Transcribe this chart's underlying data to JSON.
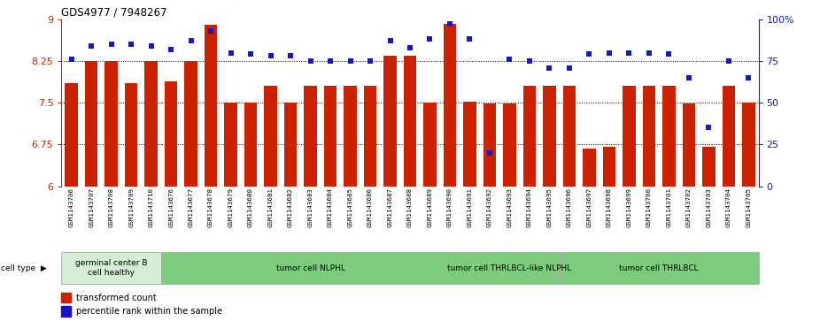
{
  "title": "GDS4977 / 7948267",
  "samples": [
    "GSM1143706",
    "GSM1143707",
    "GSM1143708",
    "GSM1143709",
    "GSM1143710",
    "GSM1143676",
    "GSM1143677",
    "GSM1143678",
    "GSM1143679",
    "GSM1143680",
    "GSM1143681",
    "GSM1143682",
    "GSM1143683",
    "GSM1143684",
    "GSM1143685",
    "GSM1143686",
    "GSM1143687",
    "GSM1143688",
    "GSM1143689",
    "GSM1143690",
    "GSM1143691",
    "GSM1143692",
    "GSM1143693",
    "GSM1143694",
    "GSM1143695",
    "GSM1143696",
    "GSM1143697",
    "GSM1143698",
    "GSM1143699",
    "GSM1143700",
    "GSM1143701",
    "GSM1143702",
    "GSM1143703",
    "GSM1143704",
    "GSM1143705"
  ],
  "bar_values": [
    7.85,
    8.25,
    8.25,
    7.85,
    8.25,
    7.88,
    8.25,
    8.9,
    7.5,
    7.5,
    7.8,
    7.5,
    7.8,
    7.8,
    7.8,
    7.8,
    8.35,
    8.35,
    7.5,
    8.92,
    7.52,
    7.48,
    7.48,
    7.8,
    7.8,
    7.8,
    6.68,
    6.7,
    7.8,
    7.8,
    7.8,
    7.48,
    6.7,
    7.8,
    7.5
  ],
  "percentile_values": [
    76,
    84,
    85,
    85,
    84,
    82,
    87,
    93,
    80,
    79,
    78,
    78,
    75,
    75,
    75,
    75,
    87,
    83,
    88,
    97,
    88,
    20,
    76,
    75,
    71,
    71,
    79,
    80,
    80,
    80,
    79,
    65,
    35,
    75,
    65
  ],
  "bar_color": "#cc2200",
  "dot_color": "#1515cc",
  "ylim_left": [
    6,
    9
  ],
  "ylim_right": [
    0,
    100
  ],
  "yticks_left": [
    6,
    6.75,
    7.5,
    8.25,
    9
  ],
  "yticks_right": [
    0,
    25,
    50,
    75,
    100
  ],
  "ytick_labels_left": [
    "6",
    "6.75",
    "7.5",
    "8.25",
    "9"
  ],
  "ytick_labels_right": [
    "0",
    "25",
    "50",
    "75",
    "100%"
  ],
  "dotted_lines": [
    6.75,
    7.5,
    8.25
  ],
  "groups": [
    {
      "label": "germinal center B\ncell healthy",
      "start": 0,
      "end": 5,
      "light": true
    },
    {
      "label": "tumor cell NLPHL",
      "start": 5,
      "end": 20,
      "light": false
    },
    {
      "label": "tumor cell THRLBCL-like NLPHL",
      "start": 20,
      "end": 25,
      "light": false
    },
    {
      "label": "tumor cell THRLBCL",
      "start": 25,
      "end": 35,
      "light": false
    }
  ],
  "group_light_color": "#d4eed4",
  "group_dark_color": "#7dcc7d",
  "group_border_color": "#aaaaaa",
  "group_separator_color": "#888888"
}
